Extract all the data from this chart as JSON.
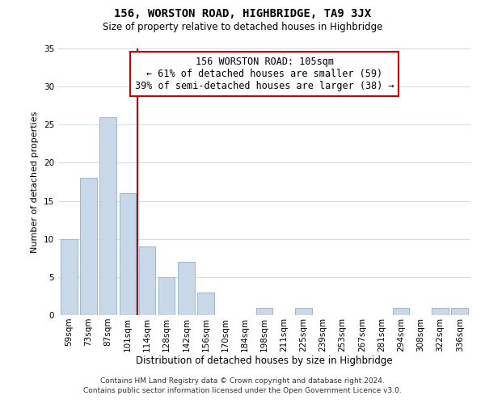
{
  "title": "156, WORSTON ROAD, HIGHBRIDGE, TA9 3JX",
  "subtitle": "Size of property relative to detached houses in Highbridge",
  "xlabel": "Distribution of detached houses by size in Highbridge",
  "ylabel": "Number of detached properties",
  "bar_labels": [
    "59sqm",
    "73sqm",
    "87sqm",
    "101sqm",
    "114sqm",
    "128sqm",
    "142sqm",
    "156sqm",
    "170sqm",
    "184sqm",
    "198sqm",
    "211sqm",
    "225sqm",
    "239sqm",
    "253sqm",
    "267sqm",
    "281sqm",
    "294sqm",
    "308sqm",
    "322sqm",
    "336sqm"
  ],
  "bar_values": [
    10,
    18,
    26,
    16,
    9,
    5,
    7,
    3,
    0,
    0,
    1,
    0,
    1,
    0,
    0,
    0,
    0,
    1,
    0,
    1,
    1
  ],
  "bar_color": "#c8d8e8",
  "bar_edge_color": "#a0b8cc",
  "highlight_line_color": "#cc0000",
  "annotation_title": "156 WORSTON ROAD: 105sqm",
  "annotation_line1": "← 61% of detached houses are smaller (59)",
  "annotation_line2": "39% of semi-detached houses are larger (38) →",
  "annotation_box_edge": "#cc0000",
  "ylim": [
    0,
    35
  ],
  "yticks": [
    0,
    5,
    10,
    15,
    20,
    25,
    30,
    35
  ],
  "footer1": "Contains HM Land Registry data © Crown copyright and database right 2024.",
  "footer2": "Contains public sector information licensed under the Open Government Licence v3.0.",
  "grid_color": "#d0dce8",
  "title_fontsize": 10,
  "subtitle_fontsize": 8.5,
  "ylabel_fontsize": 8,
  "xlabel_fontsize": 8.5,
  "tick_fontsize": 7.5,
  "annotation_fontsize": 8.5,
  "footer_fontsize": 6.5
}
